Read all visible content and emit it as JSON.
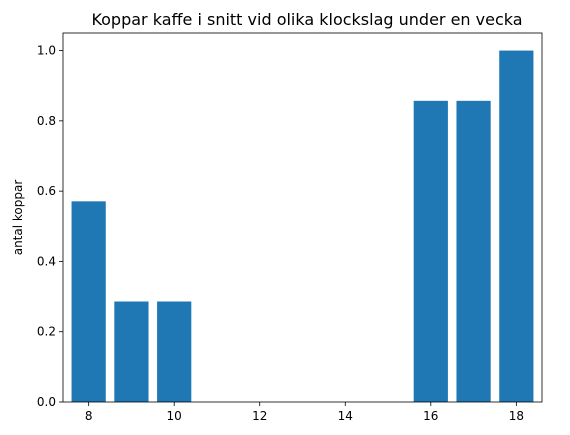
{
  "chart_data": {
    "type": "bar",
    "title": "Koppar kaffe i snitt vid olika klockslag under en vecka",
    "xlabel": "",
    "ylabel": "antal koppar",
    "x": [
      8,
      9,
      10,
      11,
      12,
      13,
      14,
      15,
      16,
      17,
      18
    ],
    "values": [
      0.571,
      0.286,
      0.286,
      0,
      0,
      0,
      0,
      0,
      0.857,
      0.857,
      1.0
    ],
    "xlim": [
      7.4,
      18.6
    ],
    "ylim": [
      0,
      1.05
    ],
    "xticks": [
      8,
      10,
      12,
      14,
      16,
      18
    ],
    "xtick_labels": [
      "8",
      "10",
      "12",
      "14",
      "16",
      "18"
    ],
    "yticks": [
      0.0,
      0.2,
      0.4,
      0.6,
      0.8,
      1.0
    ],
    "ytick_labels": [
      "0.0",
      "0.2",
      "0.4",
      "0.6",
      "0.8",
      "1.0"
    ],
    "bar_color": "#1f77b4",
    "grid": false
  }
}
